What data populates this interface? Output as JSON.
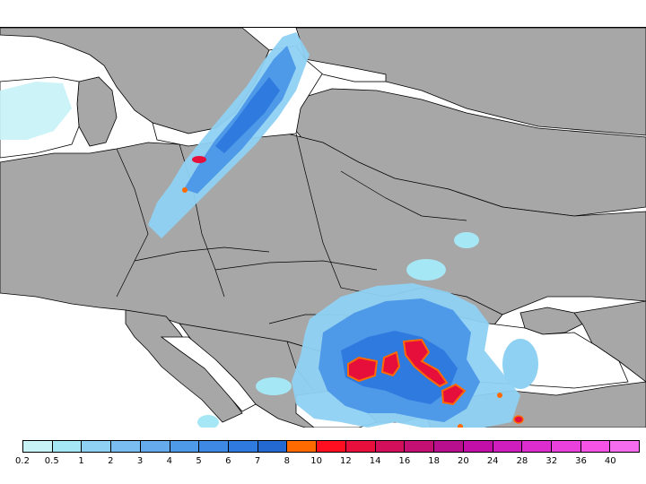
{
  "colors": {
    "land": "#a7a7a7",
    "sea": "#ffffff",
    "boundary": "#000000",
    "precip_light": "#a6e7f6",
    "precip_blue": "#3c7fe3",
    "precip_dark": "#1d5fc9",
    "precip_orange": "#ff6a00",
    "precip_red": "#e60f3c"
  },
  "legend": {
    "colors": [
      "#c7f3f7",
      "#a6e7f6",
      "#8ed1f2",
      "#7abdf0",
      "#64aaec",
      "#4f99e9",
      "#3e89e4",
      "#2e7adf",
      "#2369d1",
      "#ff6a00",
      "#ff0f1f",
      "#e80f3d",
      "#d20f5a",
      "#c40f73",
      "#b80f8f",
      "#c10fa8",
      "#d01dbd",
      "#de2dcf",
      "#ea40dc",
      "#f453e6",
      "#f56cee"
    ],
    "labels": [
      "0.2",
      "0.5",
      "1",
      "2",
      "3",
      "4",
      "5",
      "6",
      "7",
      "8",
      "10",
      "12",
      "14",
      "16",
      "18",
      "20",
      "24",
      "28",
      "32",
      "36",
      "40"
    ]
  }
}
